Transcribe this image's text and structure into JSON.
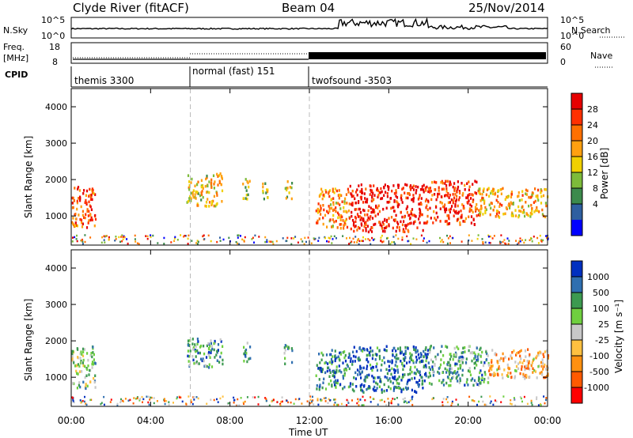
{
  "header": {
    "station": "Clyde River (fitACF)",
    "beam": "Beam 04",
    "date": "25/Nov/2014"
  },
  "noise_panel": {
    "left_label": "N.Sky",
    "right_label": "N.Search",
    "ticks_left": [
      "10^5",
      "10^0"
    ],
    "ticks_right": [
      "10^5",
      "10^0"
    ]
  },
  "freq_panel": {
    "left_label_1": "Freq.",
    "left_label_2": "[MHz]",
    "right_label": "Nave",
    "ticks_left": [
      "18",
      "8"
    ],
    "ticks_right": [
      "60",
      "0"
    ]
  },
  "cpid": {
    "label": "CPID",
    "modes": [
      {
        "name": "themis 3300",
        "start_hour": 0
      },
      {
        "name": "normal (fast) 151",
        "start_hour": 6
      },
      {
        "name": "twofsound -3503",
        "start_hour": 12
      }
    ]
  },
  "chart_data": [
    {
      "type": "heatmap",
      "parameter": "power",
      "ylabel": "Slant Range [km]",
      "xlabel": "",
      "yticks": [
        "1000",
        "2000",
        "3000",
        "4000"
      ],
      "ylim": [
        200,
        4500
      ],
      "xlim_hours": [
        0,
        24
      ],
      "colorbar_label": "Power [dB]",
      "colorbar_ticks": [
        "28",
        "24",
        "20",
        "16",
        "12",
        "8",
        "4"
      ],
      "colorbar_colors": [
        "#e60000",
        "#ff3000",
        "#ff7000",
        "#ffa010",
        "#f0d000",
        "#7dbb3a",
        "#3c8a4c",
        "#2f5fa0",
        "#0000ff"
      ],
      "regions": [
        {
          "t": [
            0.0,
            1.2
          ],
          "r": [
            700,
            1900
          ],
          "level": 0.75
        },
        {
          "t": [
            5.8,
            7.6
          ],
          "r": [
            1300,
            2200
          ],
          "level": 0.55
        },
        {
          "t": [
            8.6,
            9.0
          ],
          "r": [
            1500,
            2100
          ],
          "level": 0.45
        },
        {
          "t": [
            9.6,
            10.0
          ],
          "r": [
            1500,
            2000
          ],
          "level": 0.45
        },
        {
          "t": [
            10.7,
            11.1
          ],
          "r": [
            1500,
            2000
          ],
          "level": 0.45
        },
        {
          "t": [
            12.3,
            14.0
          ],
          "r": [
            700,
            1800
          ],
          "level": 0.65
        },
        {
          "t": [
            14.0,
            17.8
          ],
          "r": [
            600,
            1900
          ],
          "level": 0.92
        },
        {
          "t": [
            17.8,
            20.5
          ],
          "r": [
            800,
            2000
          ],
          "level": 0.85
        },
        {
          "t": [
            20.5,
            24.0
          ],
          "r": [
            1000,
            1800
          ],
          "level": 0.6
        }
      ]
    },
    {
      "type": "heatmap",
      "parameter": "velocity",
      "ylabel": "Slant Range [km]",
      "xlabel": "Time UT",
      "xticks": [
        "00:00",
        "04:00",
        "08:00",
        "12:00",
        "16:00",
        "20:00",
        "00:00"
      ],
      "yticks": [
        "1000",
        "2000",
        "3000",
        "4000"
      ],
      "ylim": [
        200,
        4500
      ],
      "xlim_hours": [
        0,
        24
      ],
      "colorbar_label": "Velocity [m s⁻¹]",
      "colorbar_ticks": [
        "1000",
        "500",
        "100",
        "25",
        "-25",
        "-100",
        "-500",
        "-1000"
      ],
      "colorbar_colors": [
        "#0030c0",
        "#2f6fb0",
        "#3c9a50",
        "#6fcf3f",
        "#c8c8c8",
        "#ffc040",
        "#ff9010",
        "#ff5a00",
        "#ff0000"
      ],
      "regions": [
        {
          "t": [
            0.0,
            1.2
          ],
          "r": [
            700,
            1900
          ],
          "level": 0.6
        },
        {
          "t": [
            5.8,
            7.6
          ],
          "r": [
            1300,
            2100
          ],
          "level": 0.7
        },
        {
          "t": [
            8.6,
            9.0
          ],
          "r": [
            1400,
            2000
          ],
          "level": 0.7
        },
        {
          "t": [
            10.7,
            11.1
          ],
          "r": [
            1400,
            1950
          ],
          "level": 0.7
        },
        {
          "t": [
            12.3,
            14.0
          ],
          "r": [
            700,
            1800
          ],
          "level": 0.8
        },
        {
          "t": [
            14.0,
            18.0
          ],
          "r": [
            600,
            1900
          ],
          "level": 0.85
        },
        {
          "t": [
            18.0,
            21.0
          ],
          "r": [
            800,
            1900
          ],
          "level": 0.7
        },
        {
          "t": [
            21.0,
            24.0
          ],
          "r": [
            1000,
            1800
          ],
          "level": 0.35
        }
      ]
    }
  ]
}
